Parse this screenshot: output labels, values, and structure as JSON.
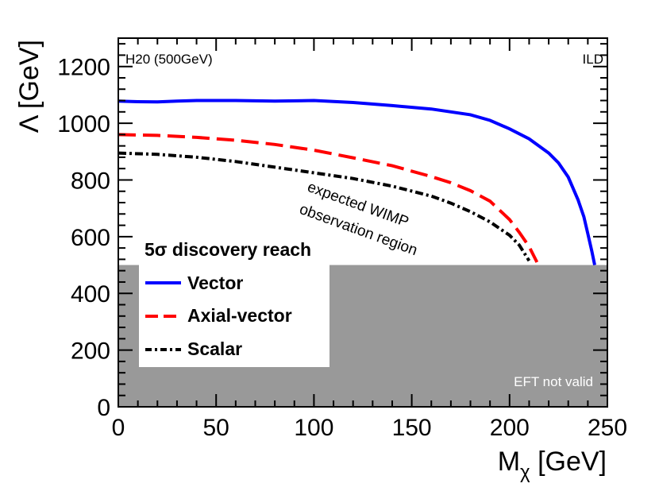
{
  "chart_data": {
    "type": "line",
    "xlabel": "M",
    "xlabel_sub": "χ",
    "xlabel_unit": " [GeV]",
    "ylabel": "Λ [GeV]",
    "xlim": [
      0,
      250
    ],
    "ylim": [
      0,
      1300
    ],
    "x_ticks": [
      0,
      50,
      100,
      150,
      200,
      250
    ],
    "y_ticks": [
      0,
      200,
      400,
      600,
      800,
      1000,
      1200
    ],
    "grid": false,
    "annotations": {
      "top_left": "H20 (500GeV)",
      "top_right": "ILD",
      "region_line1": "expected WIMP",
      "region_line2": "observation region",
      "excluded": "EFT not valid"
    },
    "excluded_region": {
      "y_max": 500,
      "label": "EFT not valid",
      "color": "#999999"
    },
    "legend": {
      "title": "5σ discovery reach",
      "position": "lower-left"
    },
    "series": [
      {
        "name": "Vector",
        "color": "#0000ff",
        "style": "solid",
        "points": [
          [
            0,
            1078
          ],
          [
            10,
            1076
          ],
          [
            20,
            1075
          ],
          [
            30,
            1078
          ],
          [
            40,
            1080
          ],
          [
            60,
            1080
          ],
          [
            80,
            1078
          ],
          [
            100,
            1080
          ],
          [
            120,
            1073
          ],
          [
            140,
            1062
          ],
          [
            160,
            1050
          ],
          [
            180,
            1030
          ],
          [
            190,
            1010
          ],
          [
            200,
            980
          ],
          [
            210,
            945
          ],
          [
            220,
            895
          ],
          [
            225,
            860
          ],
          [
            230,
            810
          ],
          [
            235,
            730
          ],
          [
            238,
            670
          ],
          [
            240,
            610
          ],
          [
            242,
            550
          ],
          [
            243.5,
            500
          ]
        ]
      },
      {
        "name": "Axial-vector",
        "color": "#ff0000",
        "style": "dashed",
        "points": [
          [
            0,
            960
          ],
          [
            20,
            957
          ],
          [
            40,
            950
          ],
          [
            60,
            940
          ],
          [
            80,
            925
          ],
          [
            100,
            905
          ],
          [
            120,
            878
          ],
          [
            140,
            850
          ],
          [
            160,
            812
          ],
          [
            170,
            790
          ],
          [
            180,
            762
          ],
          [
            190,
            725
          ],
          [
            200,
            660
          ],
          [
            205,
            615
          ],
          [
            210,
            565
          ],
          [
            214,
            510
          ]
        ]
      },
      {
        "name": "Scalar",
        "color": "#000000",
        "style": "dashdot",
        "points": [
          [
            0,
            895
          ],
          [
            20,
            890
          ],
          [
            40,
            880
          ],
          [
            60,
            865
          ],
          [
            80,
            845
          ],
          [
            100,
            825
          ],
          [
            120,
            805
          ],
          [
            140,
            778
          ],
          [
            160,
            743
          ],
          [
            170,
            718
          ],
          [
            180,
            688
          ],
          [
            190,
            652
          ],
          [
            200,
            605
          ],
          [
            205,
            570
          ],
          [
            210,
            515
          ]
        ]
      }
    ]
  }
}
